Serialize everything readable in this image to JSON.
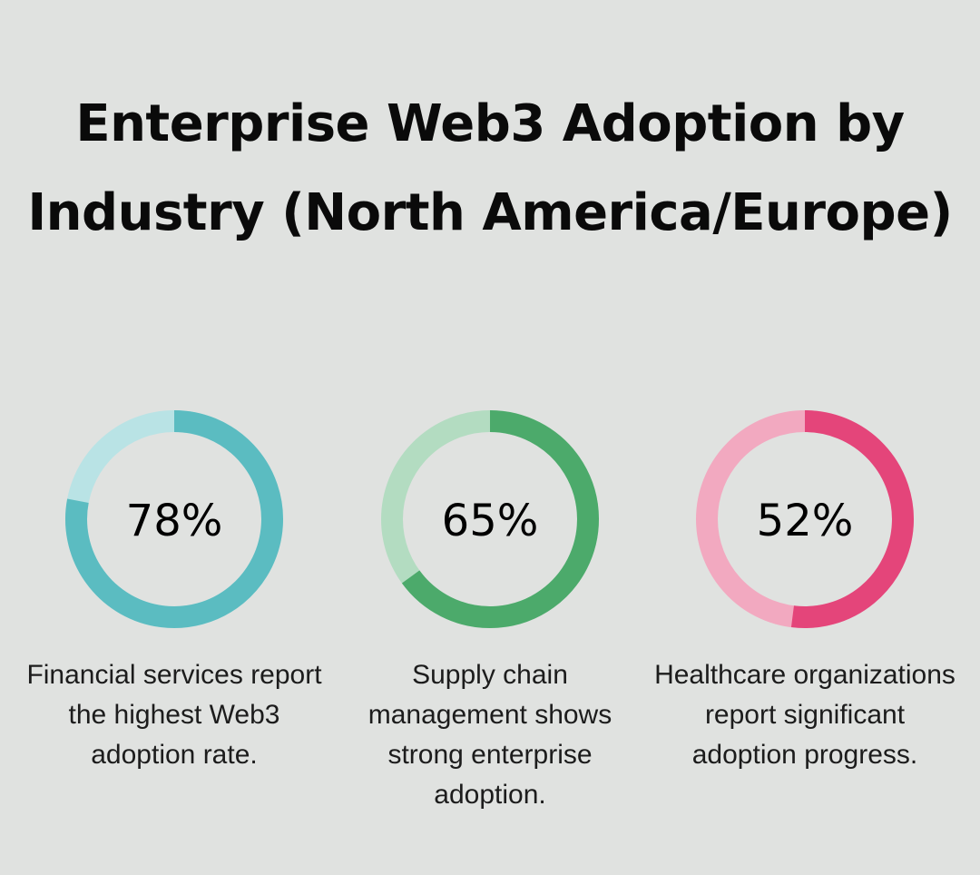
{
  "title": "Enterprise Web3 Adoption by Industry (North America/Europe)",
  "chart_data": {
    "type": "pie",
    "title": "Enterprise Web3 Adoption by Industry (North America/Europe)",
    "series": [
      {
        "name": "Financial services",
        "value": 78,
        "label": "78%",
        "description": "Financial services report the highest Web3 adoption rate.",
        "color": "#5bbcc1",
        "track_color": "#b9e3e5"
      },
      {
        "name": "Supply chain management",
        "value": 65,
        "label": "65%",
        "description": "Supply chain management shows strong enterprise adoption.",
        "color": "#4caa6b",
        "track_color": "#b3dcc1"
      },
      {
        "name": "Healthcare",
        "value": 52,
        "label": "52%",
        "description": "Healthcare organizations report significant adoption progress.",
        "color": "#e4457a",
        "track_color": "#f2a9c0"
      }
    ]
  }
}
